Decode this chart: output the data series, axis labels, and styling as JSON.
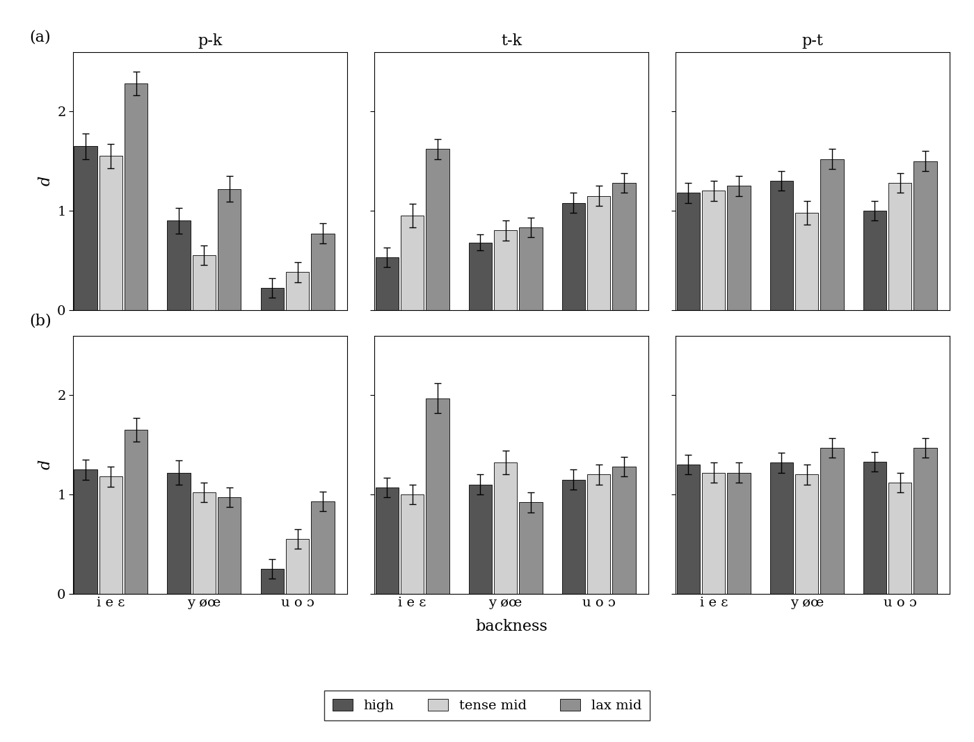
{
  "title_row": [
    "p-k",
    "t-k",
    "p-t"
  ],
  "row_labels": [
    "(a)",
    "(b)"
  ],
  "x_groups": [
    "i e ε",
    "y øœ",
    "u o ɔ"
  ],
  "xlabel": "backness",
  "ylabel": "d",
  "legend_labels": [
    "high",
    "tense mid",
    "lax mid"
  ],
  "bar_colors": [
    "#555555",
    "#d0d0d0",
    "#909090"
  ],
  "bar_edge_color": "#000000",
  "background_color": "#ffffff",
  "ylim": [
    0,
    2.6
  ],
  "yticks": [
    0,
    1,
    2
  ],
  "data": {
    "a_pk": {
      "values": [
        [
          1.65,
          1.55,
          2.28
        ],
        [
          0.9,
          0.55,
          1.22
        ],
        [
          0.22,
          0.38,
          0.77
        ]
      ],
      "errors": [
        [
          0.13,
          0.12,
          0.12
        ],
        [
          0.13,
          0.1,
          0.13
        ],
        [
          0.1,
          0.1,
          0.1
        ]
      ]
    },
    "a_tk": {
      "values": [
        [
          0.53,
          0.95,
          1.62
        ],
        [
          0.68,
          0.8,
          0.83
        ],
        [
          1.08,
          1.15,
          1.28
        ]
      ],
      "errors": [
        [
          0.1,
          0.12,
          0.1
        ],
        [
          0.08,
          0.1,
          0.1
        ],
        [
          0.1,
          0.1,
          0.1
        ]
      ]
    },
    "a_pt": {
      "values": [
        [
          1.18,
          1.2,
          1.25
        ],
        [
          1.3,
          0.98,
          1.52
        ],
        [
          1.0,
          1.28,
          1.5
        ]
      ],
      "errors": [
        [
          0.1,
          0.1,
          0.1
        ],
        [
          0.1,
          0.12,
          0.1
        ],
        [
          0.1,
          0.1,
          0.1
        ]
      ]
    },
    "b_pk": {
      "values": [
        [
          1.25,
          1.18,
          1.65
        ],
        [
          1.22,
          1.02,
          0.97
        ],
        [
          0.25,
          0.55,
          0.93
        ]
      ],
      "errors": [
        [
          0.1,
          0.1,
          0.12
        ],
        [
          0.12,
          0.1,
          0.1
        ],
        [
          0.1,
          0.1,
          0.1
        ]
      ]
    },
    "b_tk": {
      "values": [
        [
          1.07,
          1.0,
          1.97
        ],
        [
          1.1,
          1.32,
          0.92
        ],
        [
          1.15,
          1.2,
          1.28
        ]
      ],
      "errors": [
        [
          0.1,
          0.1,
          0.15
        ],
        [
          0.1,
          0.12,
          0.1
        ],
        [
          0.1,
          0.1,
          0.1
        ]
      ]
    },
    "b_pt": {
      "values": [
        [
          1.3,
          1.22,
          1.22
        ],
        [
          1.32,
          1.2,
          1.47
        ],
        [
          1.33,
          1.12,
          1.47
        ]
      ],
      "errors": [
        [
          0.1,
          0.1,
          0.1
        ],
        [
          0.1,
          0.1,
          0.1
        ],
        [
          0.1,
          0.1,
          0.1
        ]
      ]
    }
  }
}
